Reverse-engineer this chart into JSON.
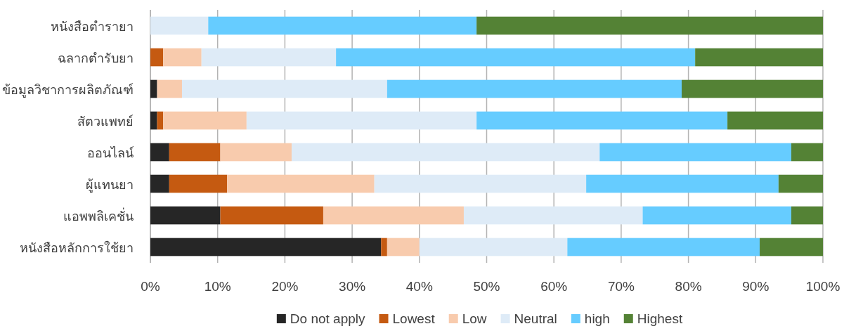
{
  "chart_data": {
    "type": "bar",
    "orientation": "horizontal",
    "stacked": true,
    "categories": [
      "หนังสือตำรายา",
      "ฉลากตำรับยา",
      "ข้อมูลวิชาการผลิตภัณฑ์",
      "สัตวแพทย์",
      "ออนไลน์",
      "ผู้แทนยา",
      "แอพพลิเคชั่น",
      "หนังสือหลักการใช้ยา"
    ],
    "series": [
      {
        "name": "Do not apply",
        "color": "#262626",
        "values": [
          0,
          0,
          1.0,
          1.0,
          2.8,
          2.8,
          10.4,
          34.3
        ]
      },
      {
        "name": "Lowest",
        "color": "#c55a11",
        "values": [
          0,
          1.9,
          0,
          0.9,
          7.6,
          8.6,
          15.3,
          0.9
        ]
      },
      {
        "name": "Low",
        "color": "#f8cbad",
        "values": [
          0,
          5.7,
          3.7,
          12.4,
          10.6,
          21.9,
          20.9,
          4.8
        ]
      },
      {
        "name": "Neutral",
        "color": "#deebf7",
        "values": [
          8.6,
          20.0,
          30.5,
          34.2,
          45.8,
          31.5,
          26.6,
          22.0
        ]
      },
      {
        "name": "high",
        "color": "#66ccff",
        "values": [
          39.9,
          53.4,
          43.8,
          37.3,
          28.5,
          28.6,
          22.1,
          28.6
        ]
      },
      {
        "name": "Highest",
        "color": "#548235",
        "values": [
          51.5,
          19.0,
          21.0,
          14.2,
          4.7,
          6.6,
          4.7,
          9.4
        ]
      }
    ],
    "xlim": [
      0,
      100
    ],
    "xticks": [
      {
        "value": 0,
        "label": "0%"
      },
      {
        "value": 10,
        "label": "10%"
      },
      {
        "value": 20,
        "label": "20%"
      },
      {
        "value": 30,
        "label": "30%"
      },
      {
        "value": 40,
        "label": "40%"
      },
      {
        "value": 50,
        "label": "50%"
      },
      {
        "value": 60,
        "label": "60%"
      },
      {
        "value": 70,
        "label": "70%"
      },
      {
        "value": 80,
        "label": "80%"
      },
      {
        "value": 90,
        "label": "90%"
      },
      {
        "value": 100,
        "label": "100%"
      }
    ],
    "grid": "x",
    "legend": "bottom"
  }
}
